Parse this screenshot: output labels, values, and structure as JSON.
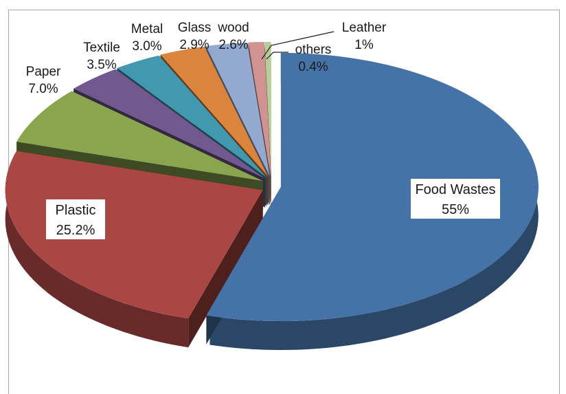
{
  "chart_data": {
    "type": "pie",
    "title": "",
    "exploded": true,
    "three_d": true,
    "slices": [
      {
        "label": "Food Wastes",
        "value_text": "55%",
        "value": 55,
        "color": "#4572A7"
      },
      {
        "label": "Plastic",
        "value_text": "25.2%",
        "value": 25.2,
        "color": "#AA4643"
      },
      {
        "label": "Paper",
        "value_text": "7.0%",
        "value": 7.0,
        "color": "#89A54E"
      },
      {
        "label": "Textile",
        "value_text": "3.5%",
        "value": 3.5,
        "color": "#71588F"
      },
      {
        "label": "Metal",
        "value_text": "3.0%",
        "value": 3.0,
        "color": "#4198AF"
      },
      {
        "label": "Glass",
        "value_text": "2.9%",
        "value": 2.9,
        "color": "#DB843D"
      },
      {
        "label": "wood",
        "value_text": "2.6%",
        "value": 2.6,
        "color": "#93A9CF"
      },
      {
        "label": "Leather",
        "value_text": "1%",
        "value": 1.0,
        "color": "#D19392"
      },
      {
        "label": "others",
        "value_text": "0.4%",
        "value": 0.4,
        "color": "#B9CD96"
      }
    ]
  }
}
